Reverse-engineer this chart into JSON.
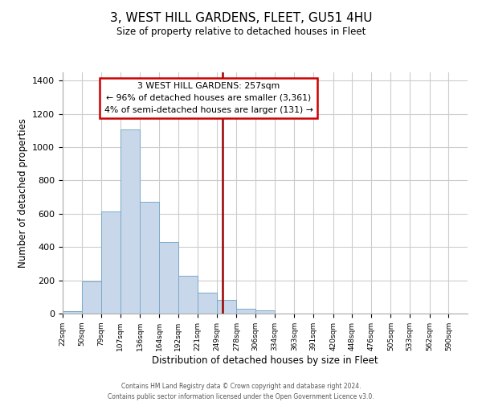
{
  "title": "3, WEST HILL GARDENS, FLEET, GU51 4HU",
  "subtitle": "Size of property relative to detached houses in Fleet",
  "xlabel": "Distribution of detached houses by size in Fleet",
  "ylabel": "Number of detached properties",
  "bar_color": "#c8d8ea",
  "bar_edge_color": "#7aaac8",
  "bin_labels": [
    "22sqm",
    "50sqm",
    "79sqm",
    "107sqm",
    "136sqm",
    "164sqm",
    "192sqm",
    "221sqm",
    "249sqm",
    "278sqm",
    "306sqm",
    "334sqm",
    "363sqm",
    "391sqm",
    "420sqm",
    "448sqm",
    "476sqm",
    "505sqm",
    "533sqm",
    "562sqm",
    "590sqm"
  ],
  "bar_heights": [
    15,
    195,
    615,
    1105,
    670,
    430,
    225,
    125,
    80,
    28,
    20,
    0,
    0,
    0,
    0,
    0,
    0,
    0,
    0,
    0,
    0
  ],
  "ylim": [
    0,
    1450
  ],
  "yticks": [
    0,
    200,
    400,
    600,
    800,
    1000,
    1200,
    1400
  ],
  "property_line_x": 257,
  "bin_edges_numeric": [
    22,
    50,
    79,
    107,
    136,
    164,
    192,
    221,
    249,
    278,
    306,
    334,
    363,
    391,
    420,
    448,
    476,
    505,
    533,
    562,
    590
  ],
  "annotation_title": "3 WEST HILL GARDENS: 257sqm",
  "annotation_line1": "← 96% of detached houses are smaller (3,361)",
  "annotation_line2": "4% of semi-detached houses are larger (131) →",
  "annotation_box_color": "#ffffff",
  "annotation_box_edge": "#cc0000",
  "red_line_color": "#990000",
  "footer_line1": "Contains HM Land Registry data © Crown copyright and database right 2024.",
  "footer_line2": "Contains public sector information licensed under the Open Government Licence v3.0.",
  "background_color": "#ffffff",
  "grid_color": "#cccccc"
}
